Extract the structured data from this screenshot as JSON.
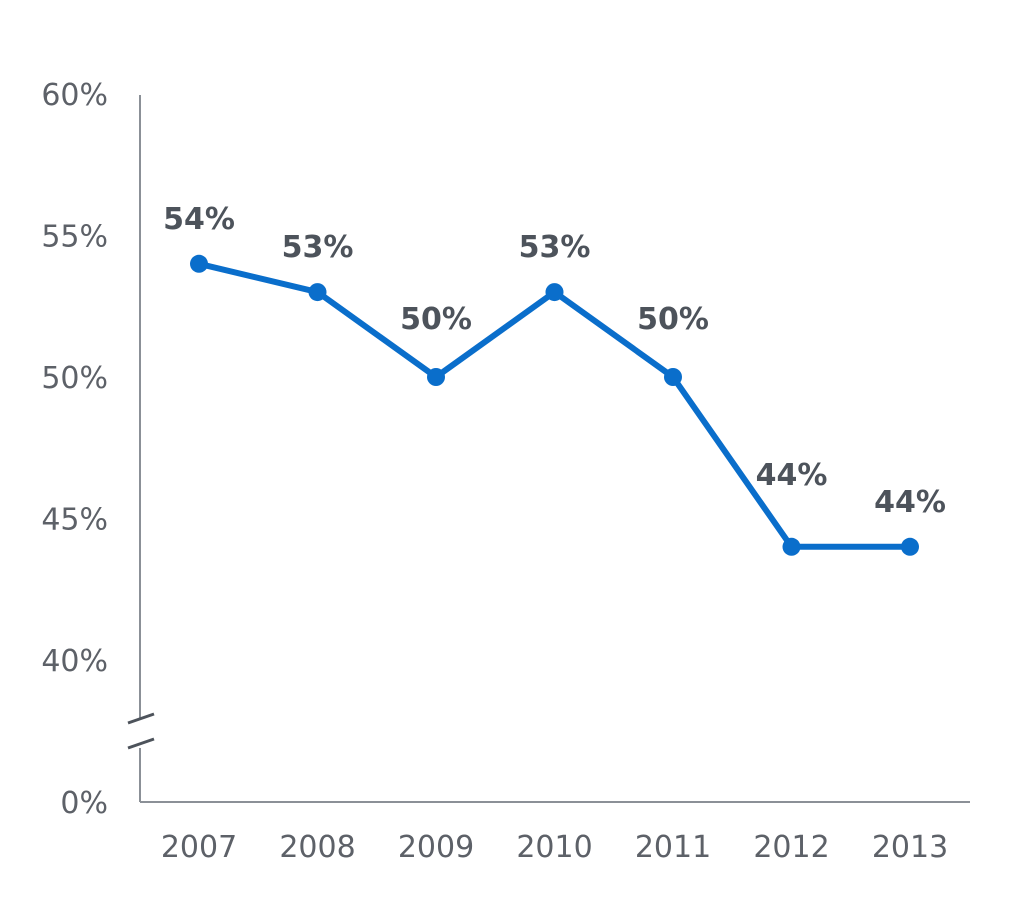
{
  "chart_data": {
    "type": "line",
    "categories": [
      "2007",
      "2008",
      "2009",
      "2010",
      "2011",
      "2012",
      "2013"
    ],
    "values": [
      54,
      53,
      50,
      53,
      50,
      44,
      44
    ],
    "data_labels": [
      "54%",
      "53%",
      "50%",
      "53%",
      "50%",
      "44%",
      "44%"
    ],
    "y_ticks": [
      {
        "value": 0,
        "label": "0%"
      },
      {
        "value": 40,
        "label": "40%"
      },
      {
        "value": 45,
        "label": "45%"
      },
      {
        "value": 50,
        "label": "50%"
      },
      {
        "value": 55,
        "label": "55%"
      },
      {
        "value": 60,
        "label": "60%"
      }
    ],
    "ylim": [
      0,
      60
    ],
    "axis_break": {
      "between": [
        0,
        40
      ]
    },
    "grid": false,
    "legend": "none",
    "colors": {
      "line": "#0a6ecb",
      "axis": "#8b9097",
      "tick_text": "#5d6168",
      "label_text": "#4d535b"
    }
  }
}
